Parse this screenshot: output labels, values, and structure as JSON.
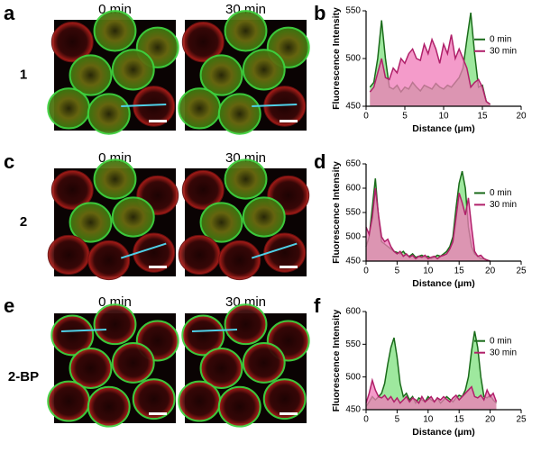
{
  "figure": {
    "rows": [
      {
        "image_letter": "a",
        "compound": "1",
        "times": [
          "0 min",
          "30 min"
        ],
        "chart_letter": "b"
      },
      {
        "image_letter": "c",
        "compound": "2",
        "times": [
          "0 min",
          "30 min"
        ],
        "chart_letter": "d"
      },
      {
        "image_letter": "e",
        "compound": "2-BP",
        "times": [
          "0 min",
          "30 min"
        ],
        "chart_letter": "f"
      }
    ]
  },
  "chart_data": [
    {
      "type": "line",
      "xlabel": "Distance (μm)",
      "ylabel": "Fluorescence Intensity",
      "x": [
        0.5,
        1,
        1.5,
        2,
        2.5,
        3,
        3.5,
        4,
        4.5,
        5,
        5.5,
        6,
        6.5,
        7,
        7.5,
        8,
        8.5,
        9,
        9.5,
        10,
        10.5,
        11,
        11.5,
        12,
        12.5,
        13,
        13.5,
        14,
        14.5,
        15,
        15.5,
        16
      ],
      "series": [
        {
          "name": "0 min",
          "color": "#1a6b1a",
          "fill": "#7ee07e",
          "values": [
            470,
            475,
            500,
            540,
            500,
            470,
            468,
            472,
            465,
            470,
            468,
            475,
            470,
            466,
            472,
            470,
            468,
            474,
            470,
            468,
            472,
            470,
            475,
            480,
            490,
            520,
            548,
            505,
            470,
            472,
            455,
            452
          ]
        },
        {
          "name": "30 min",
          "color": "#b0206a",
          "fill": "#f07ab8",
          "values": [
            465,
            470,
            485,
            500,
            480,
            478,
            490,
            485,
            500,
            495,
            505,
            510,
            500,
            498,
            515,
            505,
            520,
            510,
            495,
            515,
            505,
            525,
            500,
            510,
            500,
            490,
            470,
            475,
            478,
            470,
            455,
            452
          ]
        }
      ],
      "xlim": [
        0,
        20
      ],
      "xticks": [
        0,
        5,
        10,
        15,
        20
      ],
      "ylim": [
        450,
        550
      ],
      "yticks": [
        450,
        500,
        550
      ],
      "legend": "right"
    },
    {
      "type": "line",
      "xlabel": "Distance (μm)",
      "ylabel": "Fluorescence Intensity",
      "x": [
        0,
        0.5,
        1,
        1.5,
        2,
        2.5,
        3,
        3.5,
        4,
        4.5,
        5,
        5.5,
        6,
        6.5,
        7,
        7.5,
        8,
        8.5,
        9,
        9.5,
        10,
        10.5,
        11,
        11.5,
        12,
        12.5,
        13,
        13.5,
        14,
        14.5,
        15,
        15.5,
        16,
        16.5,
        17,
        17.5,
        18,
        18.5,
        19,
        19.5,
        20
      ],
      "series": [
        {
          "name": "0 min",
          "color": "#1a6b1a",
          "fill": "#7ee07e",
          "values": [
            480,
            500,
            560,
            620,
            540,
            490,
            485,
            480,
            475,
            470,
            468,
            465,
            470,
            462,
            460,
            465,
            458,
            460,
            462,
            458,
            460,
            455,
            458,
            462,
            460,
            465,
            470,
            480,
            500,
            560,
            610,
            635,
            600,
            520,
            480,
            465,
            460,
            455,
            455,
            452,
            450
          ]
        },
        {
          "name": "30 min",
          "color": "#b0206a",
          "fill": "#f07ab8",
          "values": [
            520,
            505,
            540,
            600,
            545,
            500,
            490,
            495,
            480,
            470,
            465,
            470,
            460,
            465,
            458,
            462,
            455,
            460,
            458,
            462,
            455,
            458,
            460,
            455,
            460,
            462,
            465,
            475,
            490,
            540,
            590,
            570,
            545,
            580,
            520,
            470,
            460,
            462,
            455,
            452,
            450
          ]
        }
      ],
      "xlim": [
        0,
        25
      ],
      "xticks": [
        0,
        5,
        10,
        15,
        20,
        25
      ],
      "ylim": [
        450,
        650
      ],
      "yticks": [
        450,
        500,
        550,
        600,
        650
      ],
      "legend": "right"
    },
    {
      "type": "line",
      "xlabel": "Distance (μm)",
      "ylabel": "Fluorescence Intensity",
      "x": [
        0,
        0.5,
        1,
        1.5,
        2,
        2.5,
        3,
        3.5,
        4,
        4.5,
        5,
        5.5,
        6,
        6.5,
        7,
        7.5,
        8,
        8.5,
        9,
        9.5,
        10,
        10.5,
        11,
        11.5,
        12,
        12.5,
        13,
        13.5,
        14,
        14.5,
        15,
        15.5,
        16,
        16.5,
        17,
        17.5,
        18,
        18.5,
        19,
        19.5,
        20,
        20.5,
        21
      ],
      "series": [
        {
          "name": "0 min",
          "color": "#1a6b1a",
          "fill": "#7ee07e",
          "values": [
            455,
            462,
            470,
            465,
            470,
            475,
            490,
            520,
            545,
            560,
            530,
            490,
            470,
            475,
            465,
            470,
            460,
            468,
            465,
            462,
            470,
            465,
            462,
            468,
            460,
            465,
            470,
            466,
            462,
            468,
            472,
            470,
            480,
            500,
            540,
            570,
            545,
            500,
            470,
            468,
            472,
            465,
            460
          ]
        },
        {
          "name": "30 min",
          "color": "#b0206a",
          "fill": "#f07ab8",
          "values": [
            460,
            475,
            495,
            480,
            470,
            468,
            472,
            465,
            470,
            462,
            468,
            460,
            465,
            470,
            462,
            468,
            465,
            460,
            470,
            462,
            466,
            470,
            462,
            468,
            465,
            470,
            466,
            462,
            468,
            472,
            465,
            470,
            475,
            480,
            485,
            470,
            468,
            472,
            465,
            480,
            470,
            475,
            462
          ]
        }
      ],
      "xlim": [
        0,
        25
      ],
      "xticks": [
        0,
        5,
        10,
        15,
        20,
        25
      ],
      "ylim": [
        450,
        600
      ],
      "yticks": [
        450,
        500,
        550,
        600
      ],
      "legend": "right"
    }
  ]
}
